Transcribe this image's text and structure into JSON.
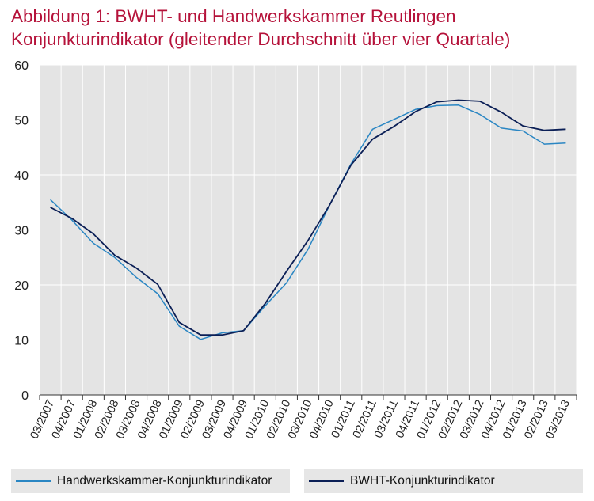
{
  "title_lines": [
    "Abbildung 1: BWHT- und Handwerkskammer  Reutlingen",
    "Konjunkturindikator (gleitender Durchschnitt über vier Quartale)"
  ],
  "colors": {
    "title": "#b5123a",
    "plot_background": "#e4e4e4",
    "grid": "#ffffff",
    "handwerkskammer": "#2a86c3",
    "bwht": "#0b1f56"
  },
  "chart_data": {
    "type": "line",
    "title": "Abbildung 1: BWHT- und Handwerkskammer  Reutlingen Konjunkturindikator (gleitender Durchschnitt über vier Quartale)",
    "categories": [
      "03/2007",
      "04/2007",
      "01/2008",
      "02/2008",
      "03/2008",
      "04/2008",
      "01/2009",
      "02/2009",
      "03/2009",
      "04/2009",
      "01/2010",
      "02/2010",
      "03/2010",
      "04/2010",
      "01/2011",
      "02/2011",
      "03/2011",
      "04/2011",
      "01/2012",
      "02/2012",
      "03/2012",
      "04/2012",
      "01/2013",
      "02/2013",
      "03/2013"
    ],
    "yticks": [
      0,
      10,
      20,
      30,
      40,
      50,
      60
    ],
    "ylim": [
      0,
      60
    ],
    "xlabel": "",
    "ylabel": "",
    "grid": true,
    "legend": "bottom",
    "series": [
      {
        "name": "Handwerkskammer-Konjunkturindikator",
        "values": [
          35.5,
          31.8,
          27.6,
          25.0,
          21.4,
          18.4,
          12.5,
          10.1,
          11.3,
          11.7,
          16.2,
          20.4,
          26.5,
          34.5,
          42.0,
          48.3,
          50.1,
          51.9,
          52.6,
          52.7,
          51.0,
          48.5,
          48.0,
          45.6,
          45.8
        ]
      },
      {
        "name": "BWHT-Konjunkturindikator",
        "values": [
          34.1,
          32.1,
          29.3,
          25.4,
          23.1,
          20.1,
          13.2,
          10.9,
          10.9,
          11.7,
          16.6,
          22.5,
          28.1,
          34.5,
          41.8,
          46.5,
          48.8,
          51.5,
          53.3,
          53.6,
          53.4,
          51.4,
          48.9,
          48.1,
          48.3
        ]
      }
    ]
  }
}
